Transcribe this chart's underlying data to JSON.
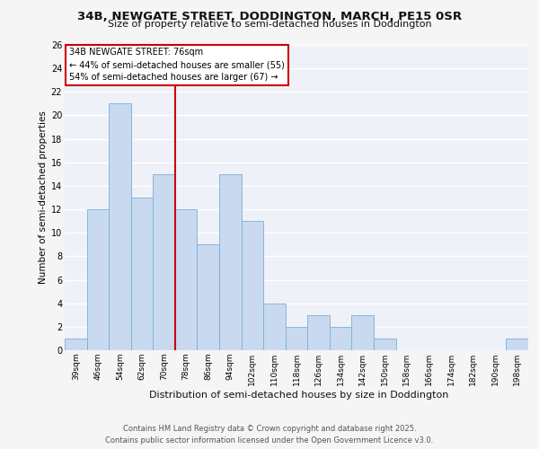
{
  "title": "34B, NEWGATE STREET, DODDINGTON, MARCH, PE15 0SR",
  "subtitle": "Size of property relative to semi-detached houses in Doddington",
  "xlabel": "Distribution of semi-detached houses by size in Doddington",
  "ylabel": "Number of semi-detached properties",
  "categories": [
    "39sqm",
    "46sqm",
    "54sqm",
    "62sqm",
    "70sqm",
    "78sqm",
    "86sqm",
    "94sqm",
    "102sqm",
    "110sqm",
    "118sqm",
    "126sqm",
    "134sqm",
    "142sqm",
    "150sqm",
    "158sqm",
    "166sqm",
    "174sqm",
    "182sqm",
    "190sqm",
    "198sqm"
  ],
  "values": [
    1,
    12,
    21,
    13,
    15,
    12,
    9,
    15,
    11,
    4,
    2,
    3,
    2,
    3,
    1,
    0,
    0,
    0,
    0,
    0,
    1
  ],
  "bar_color": "#c9d9f0",
  "bar_edge_color": "#7aafd4",
  "red_line_color": "#cc0000",
  "red_line_x": 4.5,
  "annotation_title": "34B NEWGATE STREET: 76sqm",
  "annotation_line1": "← 44% of semi-detached houses are smaller (55)",
  "annotation_line2": "54% of semi-detached houses are larger (67) →",
  "annotation_box_color": "#ffffff",
  "annotation_box_edge_color": "#cc0000",
  "background_color": "#eef2f8",
  "fig_bg_color": "#f5f5f5",
  "grid_color": "#ffffff",
  "ylim": [
    0,
    26
  ],
  "yticks": [
    0,
    2,
    4,
    6,
    8,
    10,
    12,
    14,
    16,
    18,
    20,
    22,
    24,
    26
  ],
  "footer1": "Contains HM Land Registry data © Crown copyright and database right 2025.",
  "footer2": "Contains public sector information licensed under the Open Government Licence v3.0."
}
